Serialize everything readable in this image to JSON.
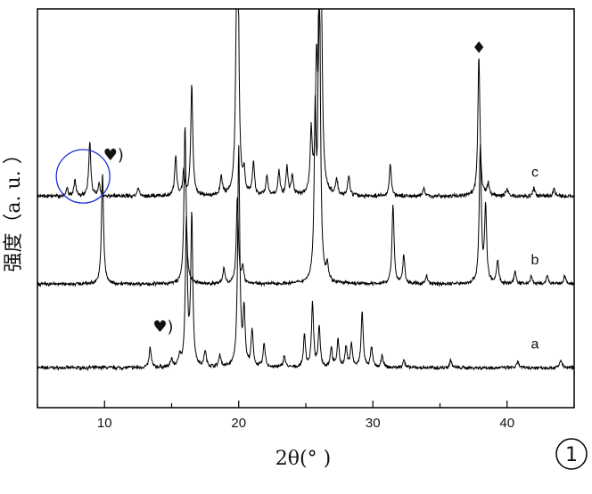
{
  "chart_data": {
    "type": "line",
    "title": "",
    "xlabel": "2θ(° )",
    "ylabel": "强度（a. u. ）",
    "xlim": [
      5,
      45
    ],
    "ylim": [
      0,
      100
    ],
    "xticks": [
      10,
      20,
      30,
      40
    ],
    "y_tick_labels": false,
    "grid": false,
    "legend": "none",
    "series": [
      {
        "name": "a",
        "baseline": 10,
        "noise": 0.35,
        "peaks": [
          [
            9.85,
            0.2
          ],
          [
            13.4,
            5
          ],
          [
            15.0,
            2
          ],
          [
            15.6,
            3
          ],
          [
            16.1,
            36
          ],
          [
            16.5,
            38
          ],
          [
            17.5,
            4
          ],
          [
            18.6,
            3
          ],
          [
            20.0,
            55
          ],
          [
            20.4,
            14
          ],
          [
            21.0,
            9
          ],
          [
            21.9,
            6
          ],
          [
            23.4,
            3
          ],
          [
            24.9,
            8
          ],
          [
            25.5,
            16
          ],
          [
            26.0,
            10
          ],
          [
            26.9,
            5
          ],
          [
            27.4,
            7
          ],
          [
            28.0,
            5
          ],
          [
            28.4,
            6
          ],
          [
            29.2,
            14
          ],
          [
            29.9,
            5
          ],
          [
            30.7,
            3
          ],
          [
            32.3,
            2
          ],
          [
            35.8,
            2
          ],
          [
            40.8,
            1.5
          ],
          [
            44.0,
            2
          ]
        ]
      },
      {
        "name": "b",
        "baseline": 31,
        "noise": 0.35,
        "peaks": [
          [
            9.85,
            28
          ],
          [
            16.0,
            40
          ],
          [
            18.9,
            4
          ],
          [
            19.9,
            22
          ],
          [
            20.3,
            4
          ],
          [
            25.7,
            40
          ],
          [
            26.0,
            90
          ],
          [
            26.6,
            4
          ],
          [
            31.5,
            20
          ],
          [
            32.3,
            7
          ],
          [
            34.0,
            2
          ],
          [
            38.0,
            34
          ],
          [
            38.4,
            19
          ],
          [
            39.3,
            6
          ],
          [
            40.6,
            3
          ],
          [
            41.8,
            2
          ],
          [
            43.0,
            2
          ],
          [
            44.3,
            2
          ]
        ]
      },
      {
        "name": "c",
        "baseline": 53,
        "noise": 0.4,
        "peaks": [
          [
            7.2,
            2
          ],
          [
            7.8,
            4
          ],
          [
            8.9,
            14
          ],
          [
            9.6,
            3
          ],
          [
            12.5,
            2
          ],
          [
            15.3,
            10
          ],
          [
            15.9,
            6
          ],
          [
            16.5,
            28
          ],
          [
            18.7,
            5
          ],
          [
            19.9,
            100
          ],
          [
            20.4,
            5
          ],
          [
            21.1,
            8
          ],
          [
            22.1,
            5
          ],
          [
            23.0,
            6
          ],
          [
            23.6,
            7
          ],
          [
            24.0,
            5
          ],
          [
            25.4,
            15
          ],
          [
            25.8,
            30
          ],
          [
            26.1,
            100
          ],
          [
            27.3,
            4
          ],
          [
            28.2,
            5
          ],
          [
            31.3,
            8
          ],
          [
            33.8,
            2
          ],
          [
            37.9,
            35
          ],
          [
            38.6,
            3
          ],
          [
            40.0,
            2
          ],
          [
            42.0,
            2
          ],
          [
            43.5,
            2
          ]
        ]
      }
    ],
    "series_labels": [
      "c",
      "b",
      "a"
    ],
    "annotations": [
      {
        "name": "heart-marker-b",
        "text": "♥)",
        "x": 9.9,
        "y": 62
      },
      {
        "name": "heart-marker-a",
        "text": "♥)",
        "x": 13.6,
        "y": 19
      },
      {
        "name": "diamond-marker-c",
        "text": "♦",
        "x": 37.9,
        "y": 89
      }
    ],
    "highlight_circle": {
      "x": 8.4,
      "y": 58
    },
    "badge": "1"
  }
}
